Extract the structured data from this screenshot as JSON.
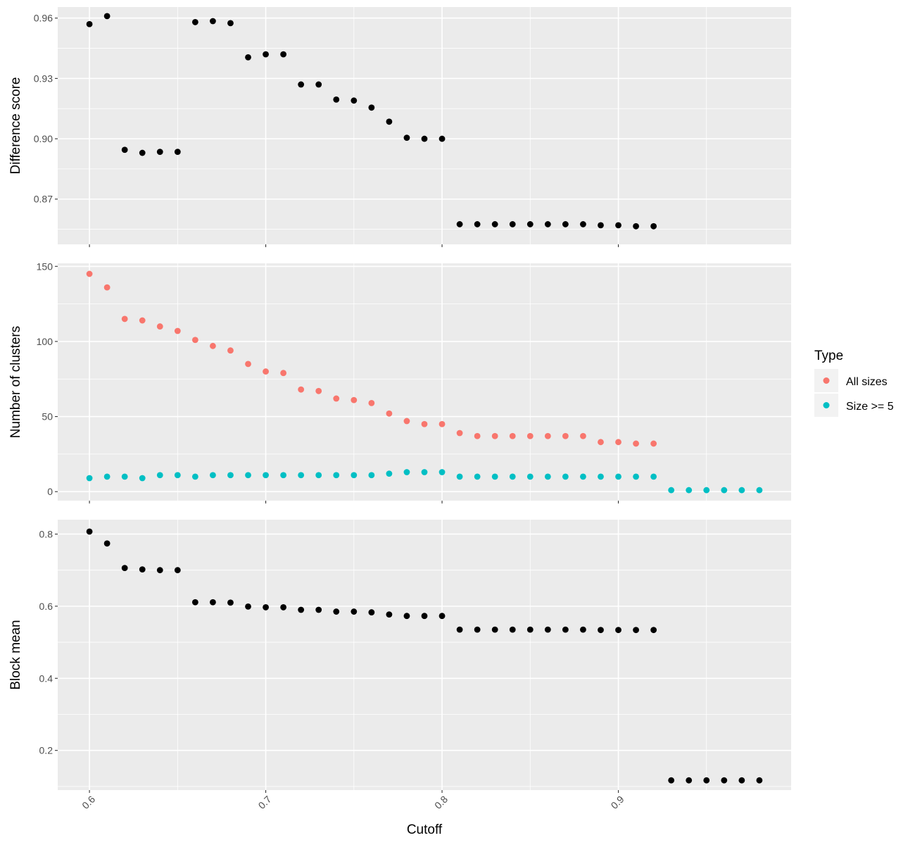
{
  "chart_data": {
    "type": "scatter",
    "xlabel": "Cutoff",
    "x_ticks": [
      "0.6",
      "0.7",
      "0.8",
      "0.9"
    ],
    "xlim": [
      0.582,
      0.998
    ],
    "colors": {
      "all_sizes": "#F8766D",
      "size_ge_5": "#00BFC4",
      "single": "#000000",
      "panel_bg": "#EBEBEB",
      "grid": "#FFFFFF"
    },
    "legend": {
      "title": "Type",
      "position": "right",
      "entries": [
        {
          "label": "All sizes",
          "color": "#F8766D"
        },
        {
          "label": "Size >= 5",
          "color": "#00BFC4"
        }
      ]
    },
    "panels": [
      {
        "ylabel": "Difference score",
        "ylim": [
          0.8475,
          0.9655
        ],
        "y_ticks": [
          "0.87",
          "0.90",
          "0.93",
          "0.96"
        ],
        "series": [
          {
            "color": "#000000",
            "x": [
              0.6,
              0.61,
              0.62,
              0.63,
              0.64,
              0.65,
              0.66,
              0.67,
              0.68,
              0.69,
              0.7,
              0.71,
              0.72,
              0.73,
              0.74,
              0.75,
              0.76,
              0.77,
              0.78,
              0.79,
              0.8,
              0.81,
              0.82,
              0.83,
              0.84,
              0.85,
              0.86,
              0.87,
              0.88,
              0.89,
              0.9,
              0.91,
              0.92
            ],
            "y": [
              0.957,
              0.961,
              0.8945,
              0.893,
              0.8935,
              0.8935,
              0.958,
              0.9585,
              0.9575,
              0.9405,
              0.942,
              0.942,
              0.927,
              0.927,
              0.9195,
              0.919,
              0.9155,
              0.9085,
              0.9005,
              0.9,
              0.9,
              0.8575,
              0.8575,
              0.8575,
              0.8575,
              0.8575,
              0.8575,
              0.8575,
              0.8575,
              0.857,
              0.857,
              0.8565,
              0.8565
            ]
          }
        ]
      },
      {
        "ylabel": "Number of clusters",
        "ylim": [
          -6,
          152
        ],
        "y_ticks": [
          "0",
          "50",
          "100",
          "150"
        ],
        "series": [
          {
            "name": "All sizes",
            "color": "#F8766D",
            "x": [
              0.6,
              0.61,
              0.62,
              0.63,
              0.64,
              0.65,
              0.66,
              0.67,
              0.68,
              0.69,
              0.7,
              0.71,
              0.72,
              0.73,
              0.74,
              0.75,
              0.76,
              0.77,
              0.78,
              0.79,
              0.8,
              0.81,
              0.82,
              0.83,
              0.84,
              0.85,
              0.86,
              0.87,
              0.88,
              0.89,
              0.9,
              0.91,
              0.92
            ],
            "y": [
              145,
              136,
              115,
              114,
              110,
              107,
              101,
              97,
              94,
              85,
              80,
              79,
              68,
              67,
              62,
              61,
              59,
              52,
              47,
              45,
              45,
              39,
              37,
              37,
              37,
              37,
              37,
              37,
              37,
              33,
              33,
              32,
              32
            ]
          },
          {
            "name": "Size >= 5",
            "color": "#00BFC4",
            "x": [
              0.6,
              0.61,
              0.62,
              0.63,
              0.64,
              0.65,
              0.66,
              0.67,
              0.68,
              0.69,
              0.7,
              0.71,
              0.72,
              0.73,
              0.74,
              0.75,
              0.76,
              0.77,
              0.78,
              0.79,
              0.8,
              0.81,
              0.82,
              0.83,
              0.84,
              0.85,
              0.86,
              0.87,
              0.88,
              0.89,
              0.9,
              0.91,
              0.92,
              0.93,
              0.94,
              0.95,
              0.96,
              0.97,
              0.98
            ],
            "y": [
              9,
              10,
              10,
              9,
              11,
              11,
              10,
              11,
              11,
              11,
              11,
              11,
              11,
              11,
              11,
              11,
              11,
              12,
              13,
              13,
              13,
              10,
              10,
              10,
              10,
              10,
              10,
              10,
              10,
              10,
              10,
              10,
              10,
              1,
              1,
              1,
              1,
              1,
              1
            ]
          }
        ]
      },
      {
        "ylabel": "Block mean",
        "ylim": [
          0.09,
          0.84
        ],
        "y_ticks": [
          "0.2",
          "0.4",
          "0.6",
          "0.8"
        ],
        "series": [
          {
            "color": "#000000",
            "x": [
              0.6,
              0.61,
              0.62,
              0.63,
              0.64,
              0.65,
              0.66,
              0.67,
              0.68,
              0.69,
              0.7,
              0.71,
              0.72,
              0.73,
              0.74,
              0.75,
              0.76,
              0.77,
              0.78,
              0.79,
              0.8,
              0.81,
              0.82,
              0.83,
              0.84,
              0.85,
              0.86,
              0.87,
              0.88,
              0.89,
              0.9,
              0.91,
              0.92,
              0.93,
              0.94,
              0.95,
              0.96,
              0.97,
              0.98
            ],
            "y": [
              0.807,
              0.774,
              0.706,
              0.702,
              0.7,
              0.7,
              0.611,
              0.611,
              0.61,
              0.599,
              0.597,
              0.597,
              0.59,
              0.59,
              0.585,
              0.585,
              0.583,
              0.577,
              0.573,
              0.573,
              0.573,
              0.535,
              0.535,
              0.535,
              0.535,
              0.535,
              0.535,
              0.535,
              0.535,
              0.534,
              0.534,
              0.534,
              0.534,
              0.117,
              0.117,
              0.117,
              0.117,
              0.117,
              0.117
            ]
          }
        ]
      }
    ]
  }
}
